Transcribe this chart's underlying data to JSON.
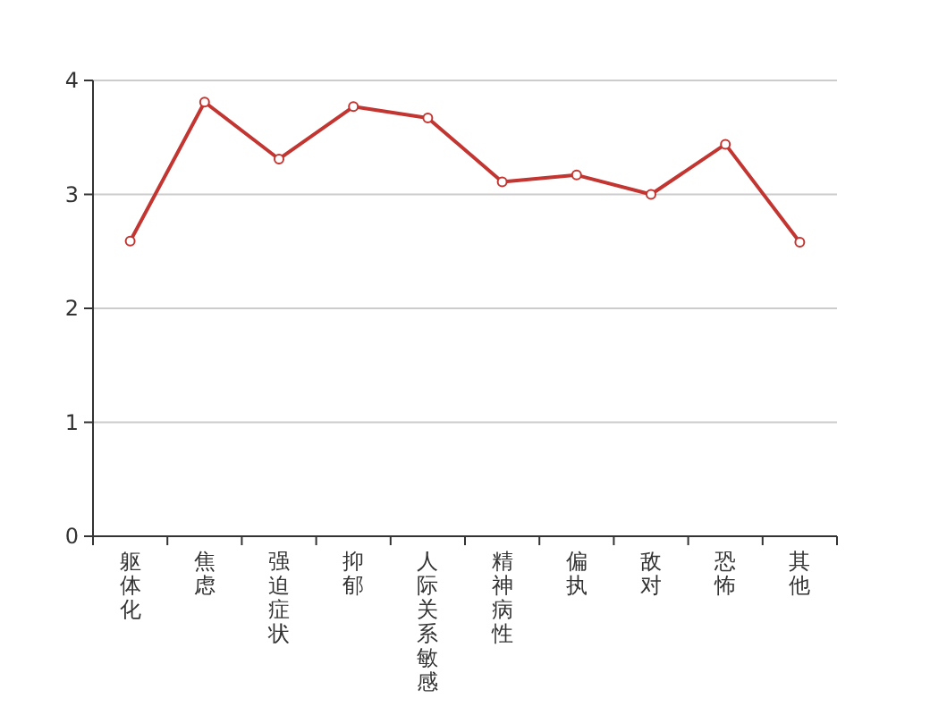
{
  "chart_data": {
    "type": "line",
    "categories": [
      "躯体化",
      "焦虑",
      "强迫症状",
      "抑郁",
      "人际关系敏感",
      "精神病性",
      "偏执",
      "敌对",
      "恐怖",
      "其他"
    ],
    "series": [
      {
        "color": "#c23531",
        "values": [
          2.59,
          3.81,
          3.31,
          3.77,
          3.67,
          3.11,
          3.17,
          3.0,
          3.44,
          2.58
        ]
      }
    ],
    "ylim": [
      0,
      4
    ],
    "yticks": [
      0,
      1,
      2,
      3,
      4
    ],
    "grid": "y",
    "marker": "circle",
    "line_style": "solid"
  }
}
